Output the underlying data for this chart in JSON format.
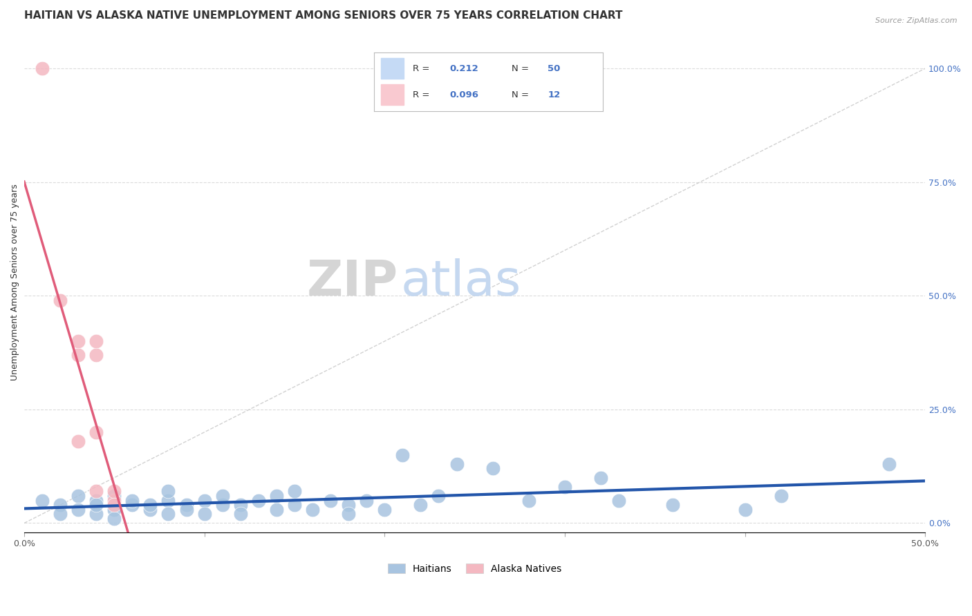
{
  "title": "HAITIAN VS ALASKA NATIVE UNEMPLOYMENT AMONG SENIORS OVER 75 YEARS CORRELATION CHART",
  "source": "Source: ZipAtlas.com",
  "ylabel": "Unemployment Among Seniors over 75 years",
  "xlim": [
    0.0,
    0.5
  ],
  "ylim": [
    -0.02,
    1.08
  ],
  "xticks": [
    0.0,
    0.1,
    0.2,
    0.3,
    0.4,
    0.5
  ],
  "xticklabels": [
    "0.0%",
    "",
    "",
    "",
    "",
    "50.0%"
  ],
  "yticks_right": [
    0.0,
    0.25,
    0.5,
    0.75,
    1.0
  ],
  "yticklabels_right": [
    "0.0%",
    "25.0%",
    "50.0%",
    "75.0%",
    "100.0%"
  ],
  "haitian_color": "#a8c4e0",
  "haitian_line_color": "#2255aa",
  "alaska_color": "#f4b8c1",
  "alaska_line_color": "#e05c7a",
  "haitian_R": 0.212,
  "haitian_N": 50,
  "alaska_R": 0.096,
  "alaska_N": 12,
  "background_color": "#ffffff",
  "grid_color": "#cccccc",
  "haitian_points": [
    [
      0.01,
      0.05
    ],
    [
      0.02,
      0.04
    ],
    [
      0.02,
      0.02
    ],
    [
      0.03,
      0.06
    ],
    [
      0.03,
      0.03
    ],
    [
      0.04,
      0.05
    ],
    [
      0.04,
      0.02
    ],
    [
      0.04,
      0.04
    ],
    [
      0.05,
      0.06
    ],
    [
      0.05,
      0.03
    ],
    [
      0.05,
      0.01
    ],
    [
      0.06,
      0.04
    ],
    [
      0.06,
      0.05
    ],
    [
      0.07,
      0.03
    ],
    [
      0.07,
      0.04
    ],
    [
      0.08,
      0.05
    ],
    [
      0.08,
      0.02
    ],
    [
      0.08,
      0.07
    ],
    [
      0.09,
      0.04
    ],
    [
      0.09,
      0.03
    ],
    [
      0.1,
      0.05
    ],
    [
      0.1,
      0.02
    ],
    [
      0.11,
      0.04
    ],
    [
      0.11,
      0.06
    ],
    [
      0.12,
      0.04
    ],
    [
      0.12,
      0.02
    ],
    [
      0.13,
      0.05
    ],
    [
      0.14,
      0.03
    ],
    [
      0.14,
      0.06
    ],
    [
      0.15,
      0.04
    ],
    [
      0.15,
      0.07
    ],
    [
      0.16,
      0.03
    ],
    [
      0.17,
      0.05
    ],
    [
      0.18,
      0.04
    ],
    [
      0.18,
      0.02
    ],
    [
      0.19,
      0.05
    ],
    [
      0.2,
      0.03
    ],
    [
      0.21,
      0.15
    ],
    [
      0.22,
      0.04
    ],
    [
      0.23,
      0.06
    ],
    [
      0.24,
      0.13
    ],
    [
      0.26,
      0.12
    ],
    [
      0.28,
      0.05
    ],
    [
      0.3,
      0.08
    ],
    [
      0.32,
      0.1
    ],
    [
      0.33,
      0.05
    ],
    [
      0.36,
      0.04
    ],
    [
      0.4,
      0.03
    ],
    [
      0.42,
      0.06
    ],
    [
      0.48,
      0.13
    ]
  ],
  "alaska_points": [
    [
      0.01,
      1.0
    ],
    [
      0.02,
      0.49
    ],
    [
      0.03,
      0.37
    ],
    [
      0.03,
      0.4
    ],
    [
      0.03,
      0.18
    ],
    [
      0.04,
      0.37
    ],
    [
      0.04,
      0.4
    ],
    [
      0.04,
      0.2
    ],
    [
      0.04,
      0.07
    ],
    [
      0.05,
      0.05
    ],
    [
      0.05,
      0.07
    ],
    [
      0.05,
      0.04
    ]
  ],
  "title_fontsize": 11,
  "axis_label_fontsize": 9,
  "tick_fontsize": 9,
  "watermark_ZIP_color": "#d5d5d5",
  "watermark_atlas_color": "#c5d8f0",
  "legend_box_color_haitian": "#c5daf5",
  "legend_box_color_alaska": "#f9c9d0",
  "diag_line_color": "#cccccc"
}
